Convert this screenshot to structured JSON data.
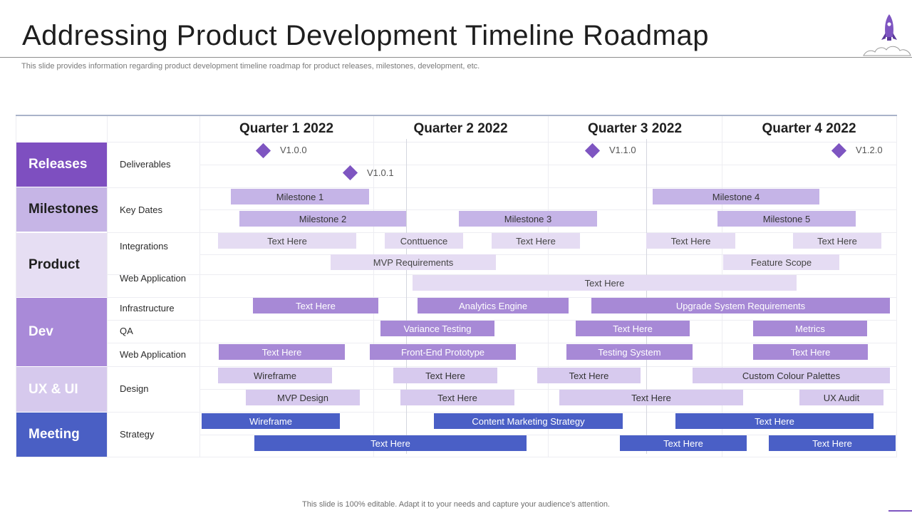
{
  "header": {
    "title": "Addressing Product Development Timeline Roadmap",
    "subtitle": "This slide provides information regarding product development timeline roadmap for product releases, milestones, development, etc.",
    "footer": "This slide is 100% editable. Adapt it to your needs and capture your audience's attention."
  },
  "colors": {
    "releases_bg": "#7e4fc0",
    "milestones_bg": "#c6b5e6",
    "product_bg": "#e6def3",
    "dev_bg": "#a98ad8",
    "uxui_bg": "#d6c9ed",
    "meeting_bg": "#4a5fc4",
    "diamond": "#7e55c1"
  },
  "quarters": [
    "Quarter 1 2022",
    "Quarter 2 2022",
    "Quarter 3 2022",
    "Quarter 4 2022"
  ],
  "categories": [
    {
      "label": "Releases"
    },
    {
      "label": "Milestones"
    },
    {
      "label": "Product"
    },
    {
      "label": "Dev"
    },
    {
      "label": "UX & UI"
    },
    {
      "label": "Meeting"
    }
  ],
  "subcategories": [
    "Deliverables",
    "Key Dates",
    "Integrations",
    "Web Application",
    "Infrastructure",
    "QA",
    "Web Application",
    "Design",
    "Strategy"
  ],
  "releases": [
    "V1.0.0",
    "V1.0.1",
    "V1.1.0",
    "V1.2.0"
  ],
  "bars": {
    "milestones": [
      "Milestone 1",
      "Milestone 4",
      "Milestone 2",
      "Milestone 3",
      "Milestone 5"
    ],
    "product": [
      "Text Here",
      "Conttuence",
      "Text Here",
      "Text Here",
      "Text Here",
      "MVP Requirements",
      "Feature Scope",
      "Text Here"
    ],
    "dev": [
      "Text Here",
      "Analytics Engine",
      "Upgrade System Requirements",
      "Variance Testing",
      "Text Here",
      "Metrics",
      "Text Here",
      "Front-End Prototype",
      "Testing System",
      "Text Here"
    ],
    "uxui": [
      "Wireframe",
      "Text Here",
      "Text Here",
      "Custom Colour Palettes",
      "MVP Design",
      "Text Here",
      "Text Here",
      "UX Audit"
    ],
    "meeting": [
      "Wireframe",
      "Content Marketing Strategy",
      "Text Here",
      "Text Here",
      "Text Here",
      "Text Here"
    ]
  }
}
